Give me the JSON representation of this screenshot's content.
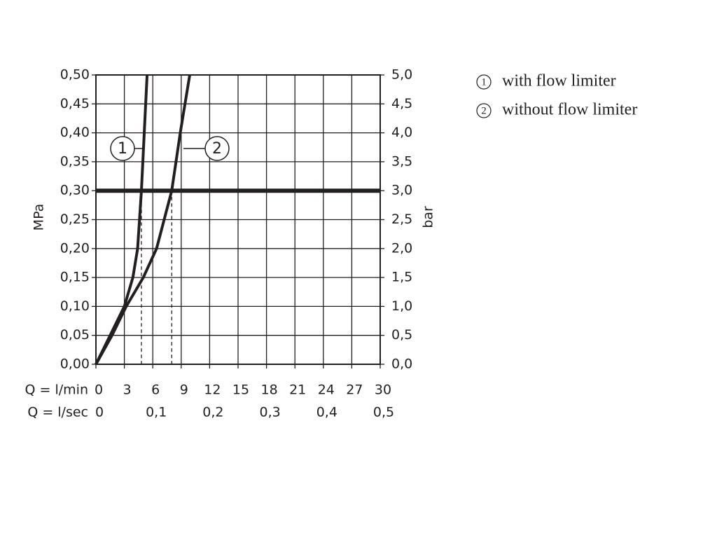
{
  "chart_data": {
    "type": "line",
    "y_label": "MPa",
    "y2_label": "bar",
    "x_label": "Q = l/min",
    "x2_label": "Q = l/sec",
    "xlim": [
      0,
      30
    ],
    "xticks": [
      0,
      3,
      6,
      9,
      12,
      15,
      18,
      21,
      24,
      27,
      30
    ],
    "x2lim": [
      0,
      0.5
    ],
    "x2ticks": [
      0,
      {
        "value": 0.1,
        "label": "0,1"
      },
      {
        "value": 0.2,
        "label": "0,2"
      },
      {
        "value": 0.3,
        "label": "0,3"
      },
      {
        "value": 0.4,
        "label": "0,4"
      },
      {
        "value": 0.5,
        "label": "0,5"
      }
    ],
    "ylim": [
      0,
      0.5
    ],
    "yticks": [
      {
        "value": 0,
        "label": "0,00"
      },
      {
        "value": 0.05,
        "label": "0,05"
      },
      {
        "value": 0.1,
        "label": "0,10"
      },
      {
        "value": 0.15,
        "label": "0,15"
      },
      {
        "value": 0.2,
        "label": "0,20"
      },
      {
        "value": 0.25,
        "label": "0,25"
      },
      {
        "value": 0.3,
        "label": "0,30"
      },
      {
        "value": 0.35,
        "label": "0,35"
      },
      {
        "value": 0.4,
        "label": "0,40"
      },
      {
        "value": 0.45,
        "label": "0,45"
      },
      {
        "value": 0.5,
        "label": "0,50"
      }
    ],
    "y2lim": [
      0,
      5
    ],
    "y2ticks": [
      {
        "value": 0,
        "label": "0,0"
      },
      {
        "value": 0.5,
        "label": "0,5"
      },
      {
        "value": 1,
        "label": "1,0"
      },
      {
        "value": 1.5,
        "label": "1,5"
      },
      {
        "value": 2,
        "label": "2,0"
      },
      {
        "value": 2.5,
        "label": "2,5"
      },
      {
        "value": 3,
        "label": "3,0"
      },
      {
        "value": 3.5,
        "label": "3,5"
      },
      {
        "value": 4,
        "label": "4,0"
      },
      {
        "value": 4.5,
        "label": "4,5"
      },
      {
        "value": 5,
        "label": "5,0"
      }
    ],
    "grid": true,
    "reference_y": 0.3,
    "reference_x": [
      4.8,
      8.0
    ],
    "series": [
      {
        "name": "with flow limiter",
        "label": "1",
        "color": "#231f20",
        "x": [
          0,
          1.5,
          3.0,
          3.9,
          4.4,
          4.8,
          5.1,
          5.4
        ],
        "values": [
          0,
          0.05,
          0.1,
          0.15,
          0.2,
          0.3,
          0.4,
          0.5
        ]
      },
      {
        "name": "without flow limiter",
        "label": "2",
        "color": "#231f20",
        "x": [
          0,
          1.7,
          3.2,
          5.0,
          6.4,
          8.0,
          8.9,
          9.9
        ],
        "values": [
          0,
          0.05,
          0.1,
          0.15,
          0.2,
          0.3,
          0.4,
          0.5
        ]
      }
    ]
  }
}
